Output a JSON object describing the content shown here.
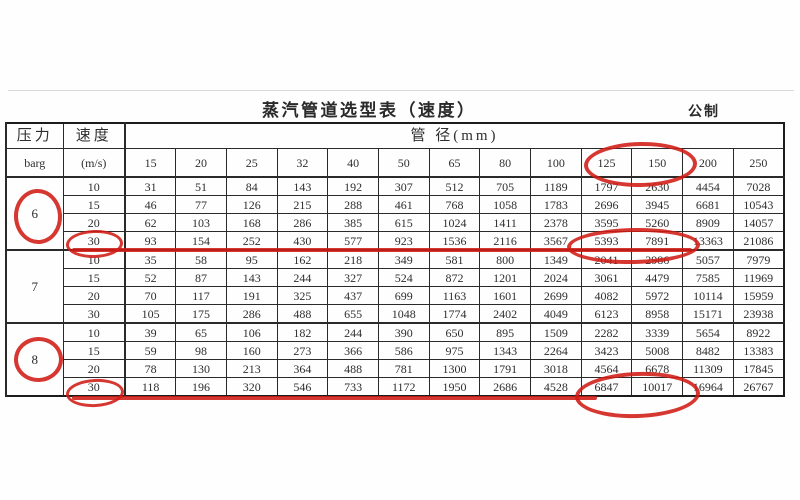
{
  "page": {
    "title": "蒸汽管道选型表（速度）",
    "unit_system_label": "公制"
  },
  "table": {
    "pressure_header": "压力",
    "pressure_unit": "barg",
    "speed_header": "速度",
    "speed_unit": "(m/s)",
    "diameter_span_header": "管 径(mm)",
    "diameters": [
      "15",
      "20",
      "25",
      "32",
      "40",
      "50",
      "65",
      "80",
      "100",
      "125",
      "150",
      "200",
      "250"
    ],
    "groups": [
      {
        "pressure": "6",
        "rows": [
          {
            "speed": "10",
            "values": [
              "31",
              "51",
              "84",
              "143",
              "192",
              "307",
              "512",
              "705",
              "1189",
              "1797",
              "2630",
              "4454",
              "7028"
            ]
          },
          {
            "speed": "15",
            "values": [
              "46",
              "77",
              "126",
              "215",
              "288",
              "461",
              "768",
              "1058",
              "1783",
              "2696",
              "3945",
              "6681",
              "10543"
            ]
          },
          {
            "speed": "20",
            "values": [
              "62",
              "103",
              "168",
              "286",
              "385",
              "615",
              "1024",
              "1411",
              "2378",
              "3595",
              "5260",
              "8909",
              "14057"
            ]
          },
          {
            "speed": "30",
            "values": [
              "93",
              "154",
              "252",
              "430",
              "577",
              "923",
              "1536",
              "2116",
              "3567",
              "5393",
              "7891",
              "13363",
              "21086"
            ]
          }
        ]
      },
      {
        "pressure": "7",
        "rows": [
          {
            "speed": "10",
            "values": [
              "35",
              "58",
              "95",
              "162",
              "218",
              "349",
              "581",
              "800",
              "1349",
              "2041",
              "2986",
              "5057",
              "7979"
            ]
          },
          {
            "speed": "15",
            "values": [
              "52",
              "87",
              "143",
              "244",
              "327",
              "524",
              "872",
              "1201",
              "2024",
              "3061",
              "4479",
              "7585",
              "11969"
            ]
          },
          {
            "speed": "20",
            "values": [
              "70",
              "117",
              "191",
              "325",
              "437",
              "699",
              "1163",
              "1601",
              "2699",
              "4082",
              "5972",
              "10114",
              "15959"
            ]
          },
          {
            "speed": "30",
            "values": [
              "105",
              "175",
              "286",
              "488",
              "655",
              "1048",
              "1774",
              "2402",
              "4049",
              "6123",
              "8958",
              "15171",
              "23938"
            ]
          }
        ]
      },
      {
        "pressure": "8",
        "rows": [
          {
            "speed": "10",
            "values": [
              "39",
              "65",
              "106",
              "182",
              "244",
              "390",
              "650",
              "895",
              "1509",
              "2282",
              "3339",
              "5654",
              "8922"
            ]
          },
          {
            "speed": "15",
            "values": [
              "59",
              "98",
              "160",
              "273",
              "366",
              "586",
              "975",
              "1343",
              "2264",
              "3423",
              "5008",
              "8482",
              "13383"
            ]
          },
          {
            "speed": "20",
            "values": [
              "78",
              "130",
              "213",
              "364",
              "488",
              "781",
              "1300",
              "1791",
              "3018",
              "4564",
              "6678",
              "11309",
              "17845"
            ]
          },
          {
            "speed": "30",
            "values": [
              "118",
              "196",
              "320",
              "546",
              "733",
              "1172",
              "1950",
              "2686",
              "4528",
              "6847",
              "10017",
              "16964",
              "26767"
            ]
          }
        ]
      }
    ]
  },
  "annotations": {
    "color": "#d01b15",
    "items": [
      {
        "type": "ellipse",
        "target": "pressure-6"
      },
      {
        "type": "ellipse",
        "target": "speed-30-pressure-6"
      },
      {
        "type": "line",
        "target": "row-30-pressure-6-underline"
      },
      {
        "type": "ellipse",
        "target": "diameter-headers-125-150"
      },
      {
        "type": "ellipse",
        "target": "values-5393-7891"
      },
      {
        "type": "ellipse",
        "target": "pressure-8"
      },
      {
        "type": "ellipse",
        "target": "speed-30-pressure-8"
      },
      {
        "type": "line",
        "target": "row-30-pressure-8-underline"
      },
      {
        "type": "ellipse",
        "target": "values-6847-10017"
      }
    ]
  }
}
